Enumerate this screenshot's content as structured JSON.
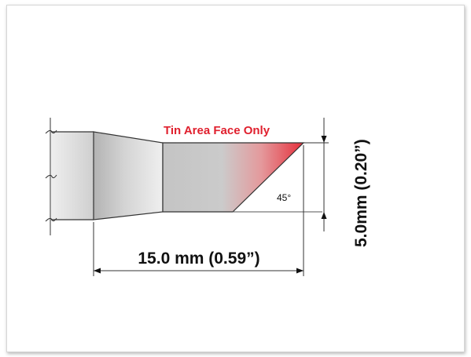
{
  "diagram": {
    "tin_area_label": "Tin Area Face Only",
    "angle_label": "45°",
    "length_label": "15.0 mm (0.59”)",
    "height_label": "5.0mm (0.20”)"
  },
  "colors": {
    "tin_area": "#e0202e",
    "tip_gray": "#c8c8c8",
    "line": "#333333",
    "frame_border": "#d6d6d6"
  }
}
